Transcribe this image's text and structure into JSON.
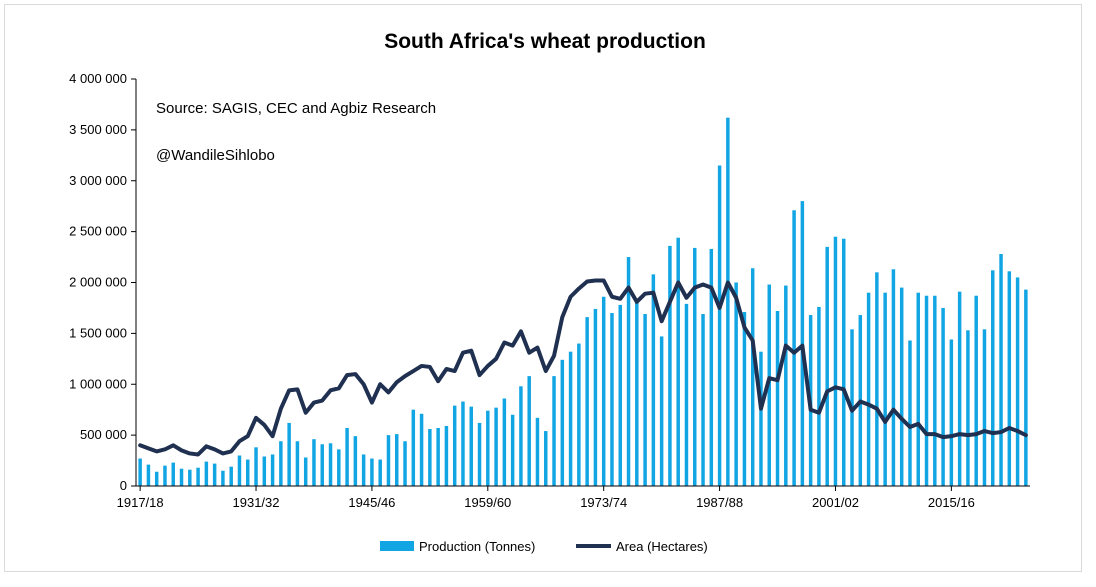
{
  "colors": {
    "production": "#12a5e3",
    "area": "#1f3050",
    "axis": "#000000"
  },
  "chart_data": {
    "type": "bar",
    "title": "South Africa's wheat production",
    "annotations": [
      "Source: SAGIS, CEC and  Agbiz Research",
      "@WandileSihlobo"
    ],
    "ylim": [
      0,
      4000000
    ],
    "y_ticks": [
      0,
      500000,
      1000000,
      1500000,
      2000000,
      2500000,
      3000000,
      3500000,
      4000000
    ],
    "y_tick_labels": [
      "0",
      "500 000",
      "1 000 000",
      "1 500 000",
      "2 000 000",
      "2 500 000",
      "3 000 000",
      "3 500 000",
      "4 000 000"
    ],
    "x_tick_labels": [
      "1917/18",
      "1931/32",
      "1945/46",
      "1959/60",
      "1973/74",
      "1987/88",
      "2001/02",
      "2015/16"
    ],
    "x_tick_every": 14,
    "first_season": "1917/18",
    "legend": [
      {
        "name": "Production (Tonnes)",
        "kind": "bar"
      },
      {
        "name": "Area (Hectares)",
        "kind": "line"
      }
    ],
    "series": [
      {
        "name": "Production (Tonnes)",
        "type": "bar",
        "values": [
          270000,
          210000,
          140000,
          200000,
          230000,
          170000,
          160000,
          180000,
          240000,
          220000,
          150000,
          190000,
          300000,
          260000,
          380000,
          290000,
          310000,
          440000,
          620000,
          440000,
          280000,
          460000,
          410000,
          420000,
          360000,
          570000,
          490000,
          310000,
          270000,
          260000,
          500000,
          510000,
          440000,
          750000,
          710000,
          560000,
          570000,
          590000,
          790000,
          830000,
          780000,
          620000,
          740000,
          770000,
          860000,
          700000,
          980000,
          1080000,
          670000,
          540000,
          1080000,
          1240000,
          1320000,
          1400000,
          1660000,
          1740000,
          1860000,
          1700000,
          1780000,
          2250000,
          1820000,
          1690000,
          2080000,
          1470000,
          2360000,
          2440000,
          1790000,
          2340000,
          1690000,
          2330000,
          3150000,
          3620000,
          2000000,
          1710000,
          2140000,
          1320000,
          1980000,
          1720000,
          1970000,
          2710000,
          2800000,
          1680000,
          1760000,
          2350000,
          2450000,
          2430000,
          1540000,
          1680000,
          1900000,
          2100000,
          1900000,
          2130000,
          1950000,
          1430000,
          1900000,
          1870000,
          1870000,
          1750000,
          1440000,
          1910000,
          1530000,
          1870000,
          1540000,
          2120000,
          2280000,
          2110000,
          2050000,
          1930000
        ]
      },
      {
        "name": "Area (Hectares)",
        "type": "line",
        "values": [
          400000,
          370000,
          340000,
          360000,
          400000,
          350000,
          320000,
          310000,
          390000,
          360000,
          320000,
          340000,
          440000,
          490000,
          670000,
          600000,
          490000,
          760000,
          940000,
          950000,
          720000,
          820000,
          840000,
          940000,
          960000,
          1090000,
          1100000,
          1000000,
          820000,
          1000000,
          920000,
          1020000,
          1080000,
          1130000,
          1180000,
          1170000,
          1030000,
          1150000,
          1130000,
          1310000,
          1330000,
          1090000,
          1180000,
          1250000,
          1410000,
          1380000,
          1520000,
          1310000,
          1360000,
          1130000,
          1280000,
          1660000,
          1860000,
          1940000,
          2010000,
          2020000,
          2020000,
          1860000,
          1840000,
          1950000,
          1810000,
          1890000,
          1900000,
          1620000,
          1810000,
          2000000,
          1850000,
          1950000,
          1980000,
          1950000,
          1750000,
          2000000,
          1850000,
          1560000,
          1430000,
          760000,
          1060000,
          1040000,
          1380000,
          1310000,
          1380000,
          750000,
          720000,
          930000,
          970000,
          950000,
          740000,
          830000,
          800000,
          760000,
          630000,
          750000,
          660000,
          580000,
          610000,
          510000,
          510000,
          480000,
          490000,
          510000,
          500000,
          510000,
          540000,
          520000,
          530000,
          570000,
          540000,
          500000
        ]
      }
    ]
  }
}
